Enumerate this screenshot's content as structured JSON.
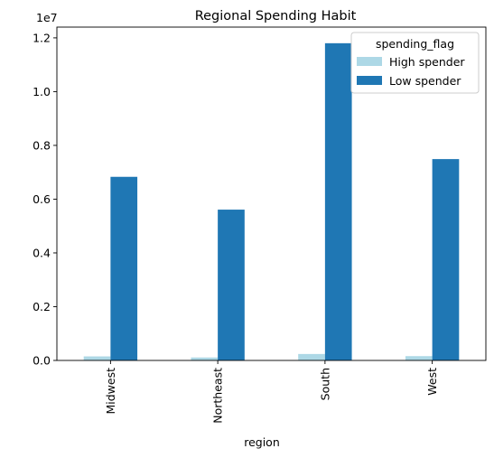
{
  "chart_data": {
    "type": "bar",
    "title": "Regional Spending Habit",
    "xlabel": "region",
    "ylabel": "",
    "categories": [
      "Midwest",
      "Northeast",
      "South",
      "West"
    ],
    "series": [
      {
        "name": "High spender",
        "color": "#add8e6",
        "values": [
          150000,
          110000,
          240000,
          160000
        ]
      },
      {
        "name": "Low spender",
        "color": "#1f77b4",
        "values": [
          6830000,
          5610000,
          11800000,
          7490000
        ]
      }
    ],
    "ylim": [
      0,
      12400000
    ],
    "y_scale_label": "1e7",
    "y_ticks": [
      0,
      2000000,
      4000000,
      6000000,
      8000000,
      10000000,
      12000000
    ],
    "y_tick_labels": [
      "0.0",
      "0.2",
      "0.4",
      "0.6",
      "0.8",
      "1.0",
      "1.2"
    ],
    "legend": {
      "title": "spending_flag",
      "placement": "top-right"
    },
    "grid": false
  }
}
